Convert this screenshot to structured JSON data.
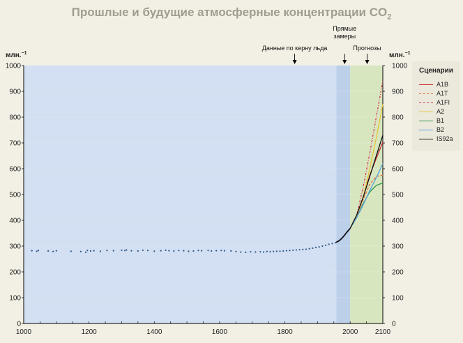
{
  "title": "Прошлые и будущие атмосферные концентрации CO",
  "title_sub": "2",
  "chart_data": {
    "type": "line",
    "ylabel_left": "млн.",
    "ylabel_right": "млн.",
    "ylabel_exp": "−1",
    "xlim": [
      1000,
      2100
    ],
    "ylim": [
      0,
      1000
    ],
    "x_ticks": [
      1000,
      1200,
      1400,
      1600,
      1800,
      2000,
      2100
    ],
    "y_ticks": [
      0,
      100,
      200,
      300,
      400,
      500,
      600,
      700,
      800,
      900,
      1000
    ],
    "regions": [
      {
        "name": "ice-core",
        "label": "Данные по керну льда",
        "x_from": 1000,
        "x_to": 1958,
        "color": "#d3dff2",
        "arrow_x": 1830
      },
      {
        "name": "direct",
        "label": "Прямые замеры",
        "x_from": 1958,
        "x_to": 2000,
        "color": "#bcd0ea",
        "arrow_x": 1983
      },
      {
        "name": "projections",
        "label": "Прогнозы",
        "x_from": 2000,
        "x_to": 2100,
        "color": "#d8e6c0",
        "arrow_x": 2052
      }
    ],
    "ice_core_points": [
      [
        1025,
        282
      ],
      [
        1040,
        280
      ],
      [
        1045,
        283
      ],
      [
        1075,
        281
      ],
      [
        1090,
        279
      ],
      [
        1100,
        282
      ],
      [
        1145,
        280
      ],
      [
        1175,
        279
      ],
      [
        1190,
        276
      ],
      [
        1195,
        283
      ],
      [
        1205,
        281
      ],
      [
        1215,
        282
      ],
      [
        1235,
        280
      ],
      [
        1255,
        283
      ],
      [
        1275,
        282
      ],
      [
        1300,
        284
      ],
      [
        1310,
        283
      ],
      [
        1315,
        285
      ],
      [
        1330,
        282
      ],
      [
        1350,
        281
      ],
      [
        1365,
        284
      ],
      [
        1380,
        283
      ],
      [
        1400,
        280
      ],
      [
        1420,
        282
      ],
      [
        1435,
        284
      ],
      [
        1445,
        282
      ],
      [
        1460,
        281
      ],
      [
        1475,
        283
      ],
      [
        1490,
        282
      ],
      [
        1505,
        280
      ],
      [
        1520,
        281
      ],
      [
        1535,
        283
      ],
      [
        1545,
        282
      ],
      [
        1565,
        283
      ],
      [
        1575,
        281
      ],
      [
        1590,
        282
      ],
      [
        1605,
        283
      ],
      [
        1615,
        282
      ],
      [
        1635,
        281
      ],
      [
        1650,
        279
      ],
      [
        1665,
        277
      ],
      [
        1680,
        276
      ],
      [
        1695,
        278
      ],
      [
        1710,
        277
      ],
      [
        1725,
        278
      ],
      [
        1735,
        277
      ],
      [
        1745,
        279
      ],
      [
        1755,
        278
      ],
      [
        1765,
        279
      ],
      [
        1775,
        280
      ],
      [
        1785,
        280
      ],
      [
        1795,
        281
      ],
      [
        1805,
        282
      ],
      [
        1815,
        283
      ],
      [
        1825,
        284
      ],
      [
        1835,
        285
      ],
      [
        1845,
        286
      ],
      [
        1855,
        287
      ],
      [
        1865,
        288
      ],
      [
        1875,
        290
      ],
      [
        1885,
        292
      ],
      [
        1895,
        295
      ],
      [
        1905,
        297
      ],
      [
        1915,
        300
      ],
      [
        1925,
        303
      ],
      [
        1935,
        307
      ],
      [
        1945,
        310
      ],
      [
        1955,
        313
      ],
      [
        1958,
        315
      ]
    ],
    "direct": {
      "x": [
        1958,
        1965,
        1970,
        1975,
        1980,
        1985,
        1990,
        1995,
        2000
      ],
      "y": [
        315,
        320,
        325,
        331,
        338,
        346,
        354,
        361,
        369
      ]
    },
    "series": [
      {
        "name": "A1B",
        "color": "#c62b2b",
        "dash": "",
        "x": [
          2000,
          2020,
          2040,
          2060,
          2080,
          2100
        ],
        "y": [
          369,
          415,
          490,
          575,
          640,
          703
        ]
      },
      {
        "name": "A1T",
        "color": "#e0703e",
        "dash": "4 2",
        "x": [
          2000,
          2020,
          2040,
          2060,
          2080,
          2100
        ],
        "y": [
          369,
          418,
          480,
          540,
          570,
          575
        ]
      },
      {
        "name": "A1FI",
        "color": "#d23a4e",
        "dash": "3 2 1 2",
        "x": [
          2000,
          2020,
          2040,
          2060,
          2080,
          2100
        ],
        "y": [
          369,
          420,
          530,
          660,
          800,
          940
        ]
      },
      {
        "name": "A2",
        "color": "#e6c43a",
        "dash": "",
        "x": [
          2000,
          2020,
          2040,
          2060,
          2080,
          2100
        ],
        "y": [
          369,
          417,
          490,
          600,
          720,
          850
        ]
      },
      {
        "name": "B1",
        "color": "#2e9a4b",
        "dash": "",
        "x": [
          2000,
          2020,
          2040,
          2060,
          2080,
          2100
        ],
        "y": [
          369,
          410,
          465,
          510,
          535,
          545
        ]
      },
      {
        "name": "B2",
        "color": "#5aa3d6",
        "dash": "",
        "x": [
          2000,
          2020,
          2040,
          2060,
          2080,
          2100
        ],
        "y": [
          369,
          410,
          460,
          515,
          565,
          620
        ]
      },
      {
        "name": "IS92a",
        "color": "#111111",
        "dash": "",
        "x": [
          2000,
          2020,
          2040,
          2060,
          2080,
          2100
        ],
        "y": [
          369,
          420,
          490,
          570,
          650,
          730
        ]
      }
    ],
    "legend": {
      "title": "Сценарии",
      "placement": "right"
    }
  }
}
